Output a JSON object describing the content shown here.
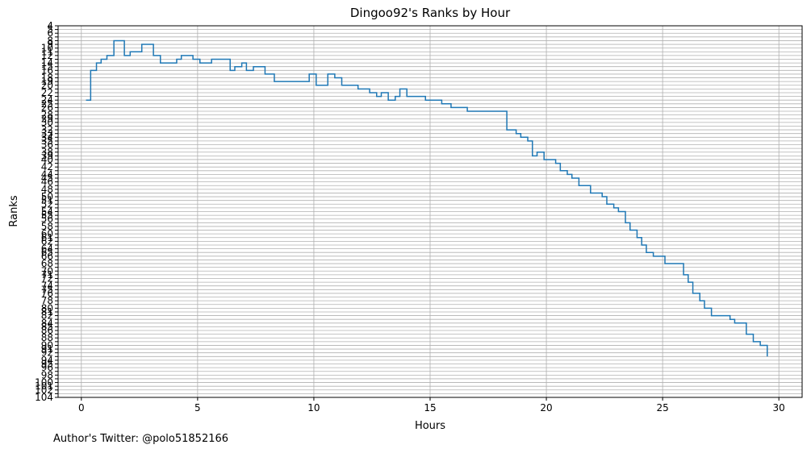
{
  "footer": {
    "text": "Author's Twitter: @polo51852166"
  },
  "chart_data": {
    "type": "line",
    "step": "post",
    "title": "Dingoo92's Ranks by Hour",
    "xlabel": "Hours",
    "ylabel": "Ranks",
    "xlim": [
      -1,
      31
    ],
    "ylim": [
      104,
      4
    ],
    "y_inverted": true,
    "grid": true,
    "line_color": "#1f77b4",
    "grid_color": "#b0b0b0",
    "x_ticks": [
      0,
      5,
      10,
      15,
      20,
      25,
      30
    ],
    "y_ticks": [
      4,
      5,
      6,
      7,
      8,
      9,
      10,
      11,
      12,
      13,
      14,
      15,
      16,
      17,
      18,
      19,
      20,
      21,
      22,
      23,
      24,
      25,
      26,
      27,
      28,
      29,
      30,
      31,
      32,
      33,
      34,
      35,
      36,
      37,
      38,
      39,
      40,
      41,
      42,
      43,
      44,
      45,
      46,
      47,
      48,
      49,
      50,
      51,
      52,
      53,
      54,
      55,
      56,
      57,
      58,
      59,
      60,
      61,
      62,
      63,
      64,
      65,
      66,
      67,
      68,
      69,
      70,
      71,
      72,
      73,
      74,
      75,
      76,
      77,
      78,
      79,
      80,
      81,
      82,
      83,
      84,
      85,
      86,
      87,
      88,
      89,
      90,
      91,
      92,
      93,
      94,
      95,
      96,
      97,
      98,
      99,
      100,
      101,
      102,
      103,
      104
    ],
    "y_ticks_labeled": [
      4,
      5,
      6,
      8,
      9,
      10,
      11,
      12,
      14,
      15,
      16,
      18,
      19,
      20,
      22,
      24,
      25,
      26,
      28,
      29,
      30,
      32,
      33,
      34,
      35,
      36,
      38,
      39,
      40,
      42,
      44,
      45,
      46,
      48,
      50,
      51,
      52,
      54,
      55,
      56,
      58,
      60,
      61,
      62,
      64,
      65,
      66,
      68,
      70,
      71,
      72,
      74,
      75,
      76,
      78,
      80,
      81,
      82,
      84,
      85,
      86,
      88,
      90,
      91,
      92,
      94,
      95,
      96,
      98,
      100,
      101,
      102,
      104
    ],
    "series": [
      {
        "x": [
          0.2,
          0.4,
          0.65,
          0.85,
          1.1,
          1.4,
          1.85,
          2.1,
          2.6,
          3.1,
          3.4,
          4.1,
          4.3,
          4.8,
          5.1,
          5.6,
          6.4,
          6.6,
          6.9,
          7.1,
          7.4,
          7.9,
          8.3,
          9.8,
          10.1,
          10.6,
          10.9,
          11.2,
          11.9,
          12.4,
          12.7,
          12.9,
          13.2,
          13.5,
          13.7,
          14.0,
          14.8,
          15.5,
          15.9,
          16.6,
          18.3,
          18.7,
          18.9,
          19.2,
          19.4,
          19.6,
          19.9,
          20.4,
          20.6,
          20.9,
          21.1,
          21.4,
          21.9,
          22.4,
          22.6,
          22.9,
          23.1,
          23.4,
          23.6,
          23.9,
          24.1,
          24.3,
          24.6,
          25.1,
          25.9,
          26.1,
          26.3,
          26.6,
          26.8,
          27.1,
          27.9,
          28.1,
          28.6,
          28.9,
          29.2,
          29.5
        ],
        "y": [
          24,
          16,
          14,
          13,
          12,
          8,
          12,
          11,
          9,
          12,
          14,
          13,
          12,
          13,
          14,
          13,
          16,
          15,
          14,
          16,
          15,
          17,
          19,
          17,
          20,
          17,
          18,
          20,
          21,
          22,
          23,
          22,
          24,
          23,
          21,
          23,
          24,
          25,
          26,
          27,
          32,
          33,
          34,
          35,
          39,
          38,
          40,
          41,
          43,
          44,
          45,
          47,
          49,
          50,
          52,
          53,
          54,
          57,
          59,
          61,
          63,
          65,
          66,
          68,
          71,
          73,
          76,
          78,
          80,
          82,
          83,
          84,
          87,
          89,
          90,
          93
        ],
        "y_end": 93
      }
    ]
  }
}
